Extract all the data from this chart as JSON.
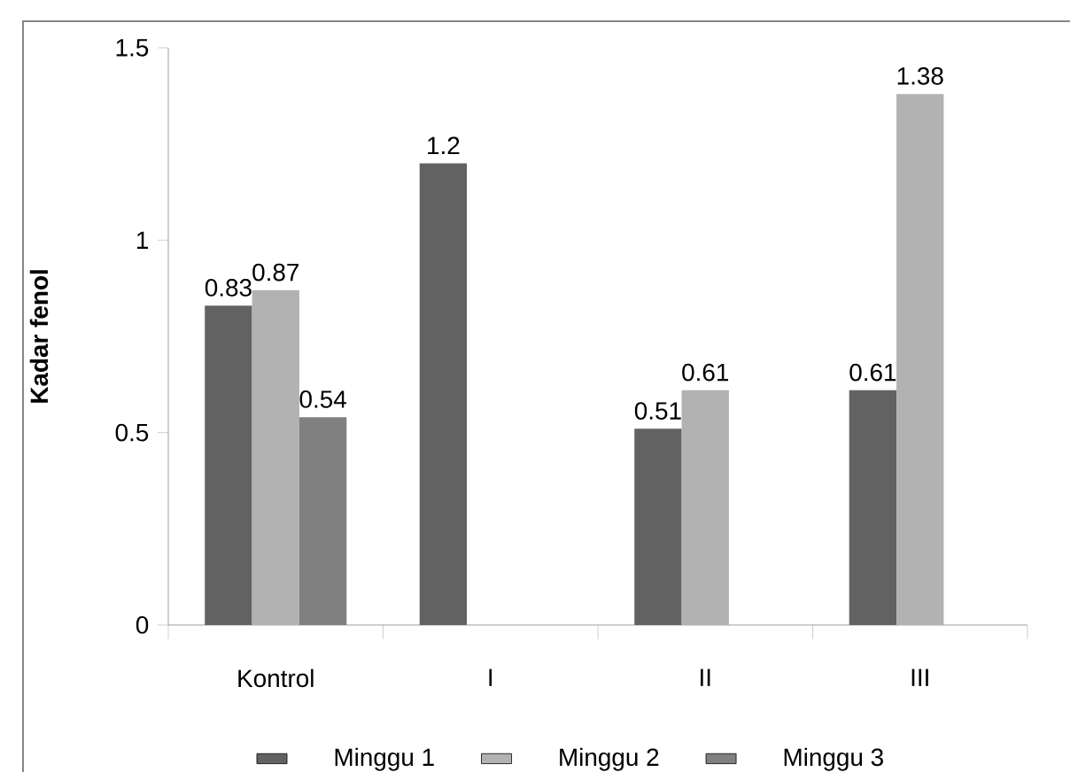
{
  "chart_data": {
    "type": "bar",
    "ylabel": "Kadar fenol",
    "categories": [
      "Kontrol",
      "I",
      "II",
      "III"
    ],
    "series": [
      {
        "name": "Minggu 1",
        "color": "#626262",
        "values": [
          0.83,
          1.2,
          0.51,
          0.61
        ],
        "value_labels": [
          "0.83",
          "1.2",
          "0.51",
          "0.61"
        ]
      },
      {
        "name": "Minggu 2",
        "color": "#b2b2b2",
        "values": [
          0.87,
          null,
          0.61,
          1.38
        ],
        "value_labels": [
          "0.87",
          null,
          "0.61",
          "1.38"
        ]
      },
      {
        "name": "Minggu 3",
        "color": "#808080",
        "values": [
          0.54,
          null,
          null,
          null
        ],
        "value_labels": [
          "0.54",
          null,
          null,
          null
        ]
      }
    ],
    "ylim": [
      0,
      1.5
    ],
    "yticks": [
      0,
      0.5,
      1,
      1.5
    ],
    "grid": false,
    "legend": "bottom"
  }
}
